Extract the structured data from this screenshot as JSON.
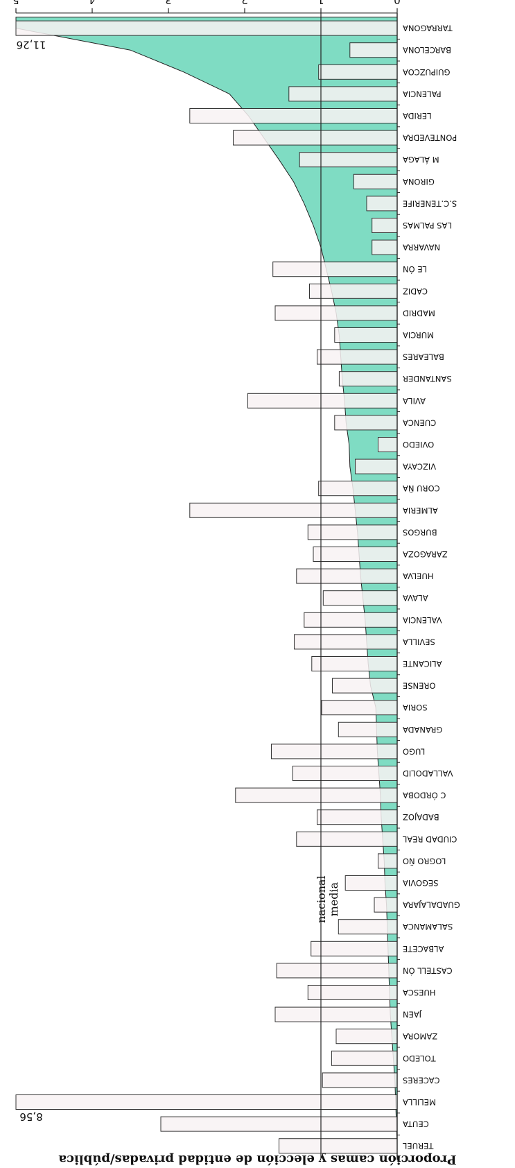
{
  "chart_data": {
    "type": "bar",
    "orientation": "horizontal, page rotated 180 degrees",
    "ylabel": "Proporción camas y elección de entidad privadas/pública",
    "xlabel": "",
    "ylim": [
      0,
      5
    ],
    "ticks": [
      "0",
      "1",
      "2",
      "3",
      "4",
      "5"
    ],
    "grid": false,
    "legend": "none",
    "reference_line": {
      "label_line1": "media",
      "label_line2": "nacional",
      "value": 1.0
    },
    "annotations": [
      {
        "text": "8,56",
        "category": "MELILLA"
      },
      {
        "text": "11,26",
        "category": "TARRAGONA"
      }
    ],
    "colors": {
      "area": "#7fdcc3",
      "bar_fill": "#f8f2f3",
      "bar_stroke": "#333333",
      "axis": "#222222"
    },
    "categories": [
      "TERUEL",
      "CEUTA",
      "MELILLA",
      "CACERES",
      "TOLEDO",
      "ZAMORA",
      "JAEN",
      "HUESCA",
      "CASTELL ÓN",
      "ALBACETE",
      "SALAMANCA",
      "GUADALAJARA",
      "SEGOVIA",
      "LOGRO ÑO",
      "CIUDAD REAL",
      "BADAJOZ",
      "C ÓRDOBA",
      "VALLADOLID",
      "LUGO",
      "GRANADA",
      "SORIA",
      "ORENSE",
      "ALICANTE",
      "SEVILLA",
      "VALENCIA",
      "ALAVA",
      "HUELVA",
      "ZARAGOZA",
      "BURGOS",
      "ALMERIA",
      "CORU ÑA",
      "VIZCAYA",
      "OVIEDO",
      "CUENCA",
      "AVILA",
      "SANTANDER",
      "BALEARES",
      "MURCIA",
      "MADRID",
      "CADIZ",
      "LE ÓN",
      "NAVARRA",
      "LAS PALMAS",
      "S.C.TENERIFE",
      "GIRONA",
      "M ÁLAGA",
      "PONTEVEDRA",
      "LERIDA",
      "PALENCIA",
      "GUIPUZCOA",
      "BARCELONA",
      "TARRAGONA"
    ],
    "series": [
      {
        "values": [
          1.55,
          3.1,
          8.56,
          0.98,
          0.86,
          0.8,
          1.6,
          1.17,
          1.58,
          1.13,
          0.77,
          0.3,
          0.68,
          0.25,
          1.32,
          1.05,
          2.12,
          1.37,
          1.65,
          0.77,
          0.99,
          0.85,
          1.12,
          1.35,
          1.22,
          0.97,
          1.32,
          1.1,
          1.17,
          2.72,
          1.03,
          0.55,
          0.25,
          0.82,
          1.96,
          0.76,
          1.05,
          0.82,
          1.6,
          1.15,
          1.63,
          0.33,
          0.33,
          0.4,
          0.57,
          1.28,
          2.15,
          2.72,
          1.42,
          1.03,
          0.62,
          11.26
        ]
      },
      {
        "values": [
          0.0,
          0.01,
          0.02,
          0.03,
          0.05,
          0.07,
          0.09,
          0.1,
          0.11,
          0.12,
          0.13,
          0.14,
          0.16,
          0.17,
          0.19,
          0.21,
          0.22,
          0.24,
          0.26,
          0.27,
          0.28,
          0.35,
          0.38,
          0.4,
          0.42,
          0.45,
          0.48,
          0.5,
          0.52,
          0.55,
          0.58,
          0.62,
          0.63,
          0.67,
          0.69,
          0.72,
          0.74,
          0.76,
          0.8,
          0.86,
          0.93,
          1.0,
          1.1,
          1.22,
          1.36,
          1.55,
          1.75,
          1.95,
          2.2,
          2.8,
          3.5,
          5.0
        ]
      }
    ]
  }
}
